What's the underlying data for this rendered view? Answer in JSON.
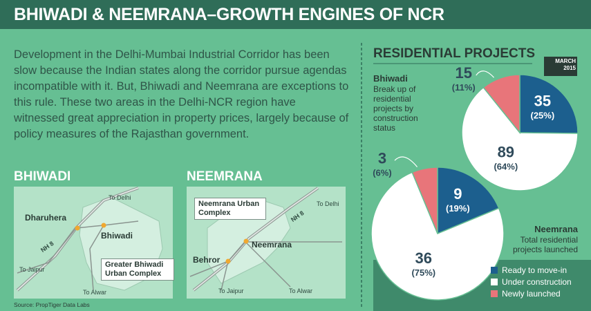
{
  "header": {
    "title": "BHIWADI & NEEMRANA–GROWTH ENGINES OF NCR"
  },
  "intro": "Development in the Delhi-Mumbai Industrial Corridor has been slow because the Indian states along the corridor pursue agendas incompatible with it. But, Bhiwadi and Neemrana are exceptions to this rule. These two areas in the Delhi-NCR region have witnessed great appreciation in property prices, largely because of policy measures of the Rajasthan government.",
  "maps": [
    {
      "title": "BHIWADI",
      "labels": [
        "To Delhi",
        "Dharuhera",
        "Bhiwadi",
        "NH 8",
        "Greater Bhiwadi Urban Complex",
        "To Jaipur",
        "To Alwar"
      ]
    },
    {
      "title": "NEEMRANA",
      "labels": [
        "Neemrana Urban Complex",
        "To Delhi",
        "NH 8",
        "Neemrana",
        "Behror",
        "To Jaipur",
        "To Alwar"
      ]
    }
  ],
  "source": "Source: PropTiger Data Labs",
  "panel": {
    "title": "RESIDENTIAL PROJECTS",
    "date": "MARCH 2015"
  },
  "chart_data": [
    {
      "type": "pie",
      "title": "Bhiwadi",
      "subtitle": "Break up of residential projects by construction status",
      "categories": [
        "Ready to move-in",
        "Under construction",
        "Newly launched"
      ],
      "colors": [
        "#1c5f8e",
        "#ffffff",
        "#e8757a"
      ],
      "values": [
        35,
        89,
        15
      ],
      "share_labels": [
        "(25%)",
        "(64%)",
        "(11%)"
      ]
    },
    {
      "type": "pie",
      "title": "Neemrana",
      "subtitle": "Total residential projects launched",
      "colors": [
        "#1c5f8e",
        "#ffffff",
        "#e8757a"
      ],
      "values": [
        9,
        36,
        3
      ],
      "share_labels": [
        "(19%)",
        "(75%)",
        "(6%)"
      ]
    }
  ]
}
